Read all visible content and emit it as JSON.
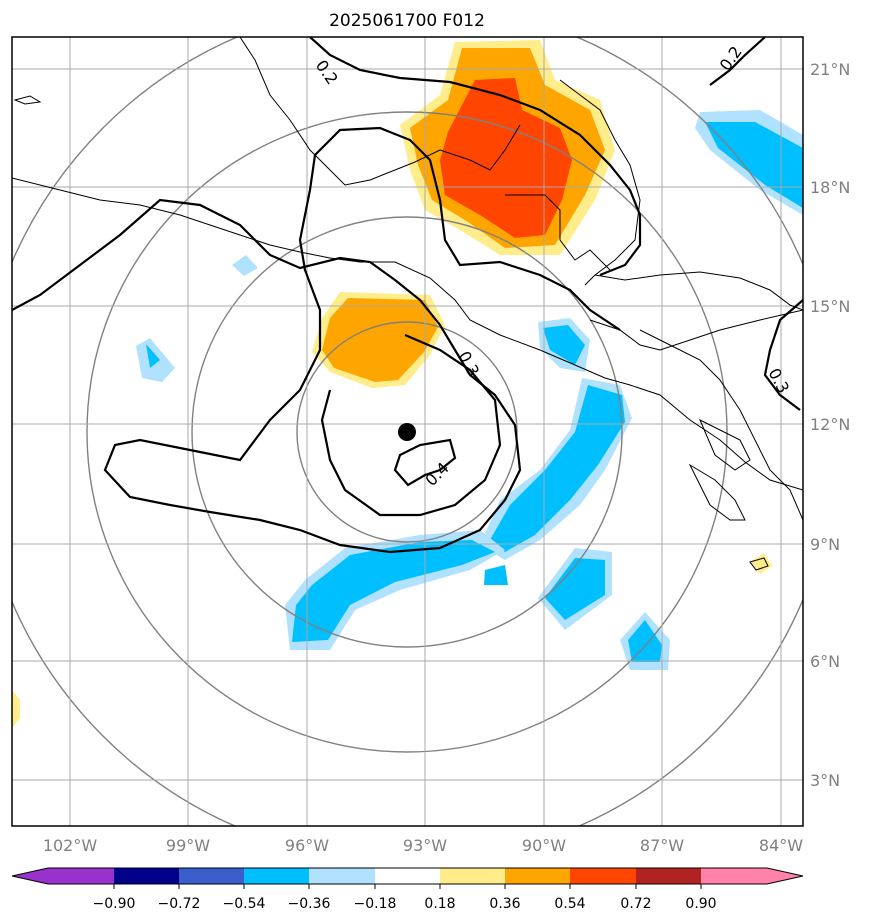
{
  "title": "2025061700 F012",
  "map": {
    "lon_labels": [
      "102°W",
      "99°W",
      "96°W",
      "93°W",
      "90°W",
      "87°W",
      "84°W"
    ],
    "lat_labels": [
      "21°N",
      "18°N",
      "15°N",
      "12°N",
      "9°N",
      "6°N",
      "3°N"
    ],
    "contour_labels": [
      "0.2",
      "0.2",
      "0.3",
      "0.3",
      "0.4"
    ],
    "center_marker": {
      "lon": -93.5,
      "lat": 11.8
    }
  },
  "colorbar": {
    "tick_labels": [
      "−0.90",
      "−0.72",
      "−0.54",
      "−0.36",
      "−0.18",
      "0.18",
      "0.36",
      "0.54",
      "0.72",
      "0.90"
    ],
    "colors": [
      "#9932cc",
      "#00008b",
      "#3a5fcd",
      "#00bfff",
      "#b0e2ff",
      "#ffffff",
      "#ffec8b",
      "#ffa500",
      "#ff4500",
      "#b22222",
      "#ff82ab"
    ]
  }
}
